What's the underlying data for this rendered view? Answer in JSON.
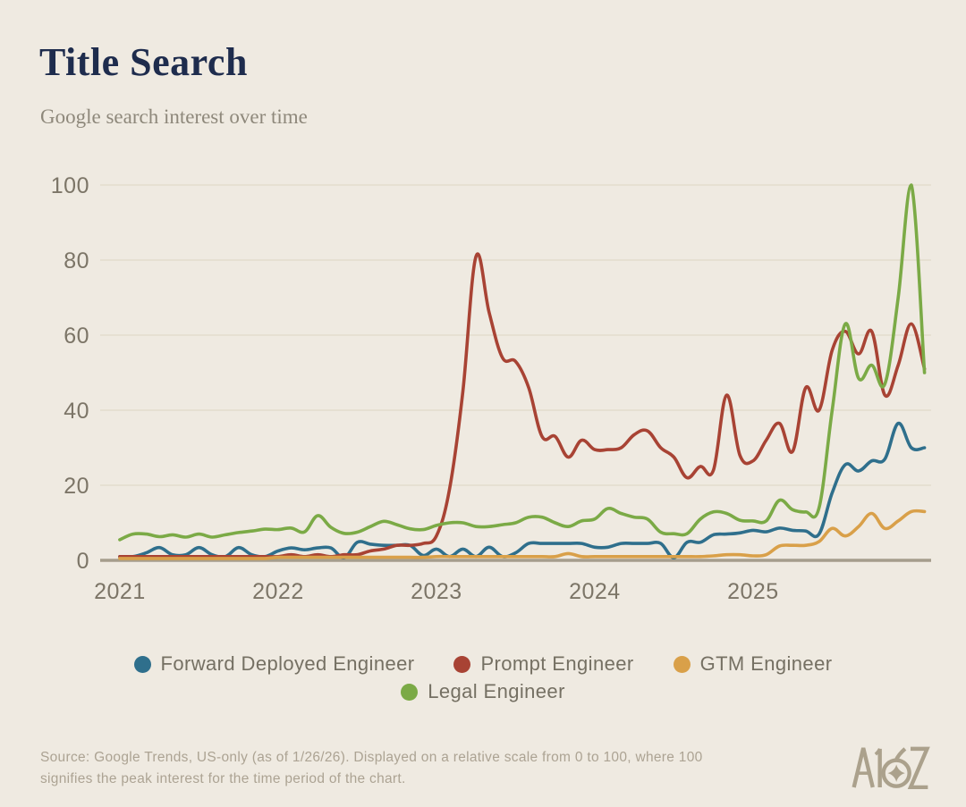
{
  "header": {
    "title": "Title Search",
    "subtitle": "Google search interest over time"
  },
  "chart_data": {
    "type": "line",
    "title": "Title Search",
    "subtitle": "Google search interest over time",
    "xlabel": "",
    "ylabel": "",
    "grid": "horizontal",
    "legend_position": "bottom",
    "ylim": [
      0,
      100
    ],
    "xlim": [
      2020.876,
      2026.125
    ],
    "y_ticks": [
      0,
      20,
      40,
      60,
      80,
      100
    ],
    "x_ticks": [
      "2021",
      "2022",
      "2023",
      "2024",
      "2025"
    ],
    "x_tick_positions": [
      2021,
      2022,
      2023,
      2024,
      2025
    ],
    "x_unit": "fractional year, monthly samples Jan 2021 - Feb 2026",
    "x": [
      2021.0,
      2021.083,
      2021.167,
      2021.25,
      2021.333,
      2021.417,
      2021.5,
      2021.583,
      2021.667,
      2021.75,
      2021.833,
      2021.917,
      2022.0,
      2022.083,
      2022.167,
      2022.25,
      2022.333,
      2022.417,
      2022.5,
      2022.583,
      2022.667,
      2022.75,
      2022.833,
      2022.917,
      2023.0,
      2023.083,
      2023.167,
      2023.25,
      2023.333,
      2023.417,
      2023.5,
      2023.583,
      2023.667,
      2023.75,
      2023.833,
      2023.917,
      2024.0,
      2024.083,
      2024.167,
      2024.25,
      2024.333,
      2024.417,
      2024.5,
      2024.583,
      2024.667,
      2024.75,
      2024.833,
      2024.917,
      2025.0,
      2025.083,
      2025.167,
      2025.25,
      2025.333,
      2025.417,
      2025.5,
      2025.583,
      2025.667,
      2025.75,
      2025.833,
      2025.917,
      2026.0,
      2026.083
    ],
    "series": [
      {
        "name": "Forward Deployed Engineer",
        "color": "#2F6F8C",
        "values": [
          1,
          1,
          2,
          3.4,
          1.5,
          1.5,
          3.4,
          1.5,
          1,
          3.4,
          1.5,
          1,
          2.5,
          3.3,
          2.8,
          3.3,
          3.3,
          0.7,
          4.8,
          4.3,
          4,
          4,
          4,
          1.3,
          3,
          1,
          3,
          1,
          3.5,
          1,
          2,
          4.5,
          4.5,
          4.5,
          4.5,
          4.5,
          3.5,
          3.5,
          4.5,
          4.5,
          4.5,
          4.5,
          0.7,
          4.8,
          4.8,
          6.8,
          7,
          7.3,
          8,
          7.6,
          8.6,
          8,
          7.8,
          7,
          18,
          25.5,
          23.8,
          26.5,
          27,
          36.5,
          30,
          30
        ]
      },
      {
        "name": "Prompt Engineer",
        "color": "#A84334",
        "values": [
          1,
          1,
          1,
          1,
          1,
          1,
          1,
          1,
          1,
          1,
          1,
          1,
          1,
          1.5,
          1,
          1.5,
          1,
          1.5,
          1.5,
          2.5,
          3,
          4,
          4,
          4.5,
          6.5,
          19,
          45,
          81,
          66,
          54,
          53,
          46,
          33,
          33,
          27.5,
          32,
          29.5,
          29.5,
          30,
          33.5,
          34.5,
          30,
          27.5,
          22,
          25,
          24,
          44,
          28,
          26.5,
          32,
          36.5,
          29,
          46,
          40,
          56,
          61,
          55,
          61,
          44,
          52,
          63,
          51
        ]
      },
      {
        "name": "GTM Engineer",
        "color": "#D9A049",
        "values": [
          0.5,
          0.5,
          0.5,
          0.5,
          0.5,
          0.5,
          0.5,
          0.5,
          0.5,
          0.5,
          0.5,
          0.5,
          0.8,
          0.8,
          0.8,
          0.8,
          0.8,
          0.8,
          0.8,
          0.8,
          0.8,
          0.8,
          0.8,
          0.8,
          1,
          1,
          1,
          1,
          1,
          1,
          1,
          1,
          1,
          1,
          1.8,
          1,
          1,
          1,
          1,
          1,
          1,
          1,
          1,
          1,
          1,
          1.2,
          1.5,
          1.5,
          1.2,
          1.5,
          3.8,
          4,
          4,
          5,
          8.5,
          6.5,
          9,
          12.5,
          8.5,
          10.5,
          13,
          13
        ]
      },
      {
        "name": "Legal Engineer",
        "color": "#7BAA46",
        "values": [
          5.5,
          7,
          7,
          6.3,
          6.8,
          6.2,
          7,
          6.2,
          6.8,
          7.4,
          7.8,
          8.3,
          8.2,
          8.6,
          7.6,
          11.9,
          8.8,
          7.2,
          7.5,
          9,
          10.4,
          9.5,
          8.4,
          8.2,
          9.3,
          10,
          10,
          9,
          9,
          9.5,
          10,
          11.5,
          11.5,
          10,
          9,
          10.5,
          11,
          13.8,
          12.5,
          11.5,
          11,
          7.5,
          7.1,
          7.1,
          11,
          12.9,
          12.5,
          10.7,
          10.5,
          10.5,
          16,
          13.5,
          12.9,
          14,
          40,
          63,
          48.5,
          52,
          47,
          70,
          100,
          50
        ]
      }
    ]
  },
  "footer": {
    "lines": [
      "Source: Google Trends, US-only (as of 1/26/26). Displayed on a relative scale from 0 to 100, where 100",
      "signifies the peak interest for the time period of the chart."
    ],
    "logo_text": "A16Z"
  },
  "colors": {
    "background": "#EFEAE1",
    "grid": "#E3DDCD",
    "axis": "#A59D8C",
    "tick_label": "#7C7567",
    "title": "#1E2C4D",
    "subtitle": "#8E887B",
    "legend_text": "#757063",
    "footer_text": "#ACA393",
    "logo": "#ABA18C"
  }
}
